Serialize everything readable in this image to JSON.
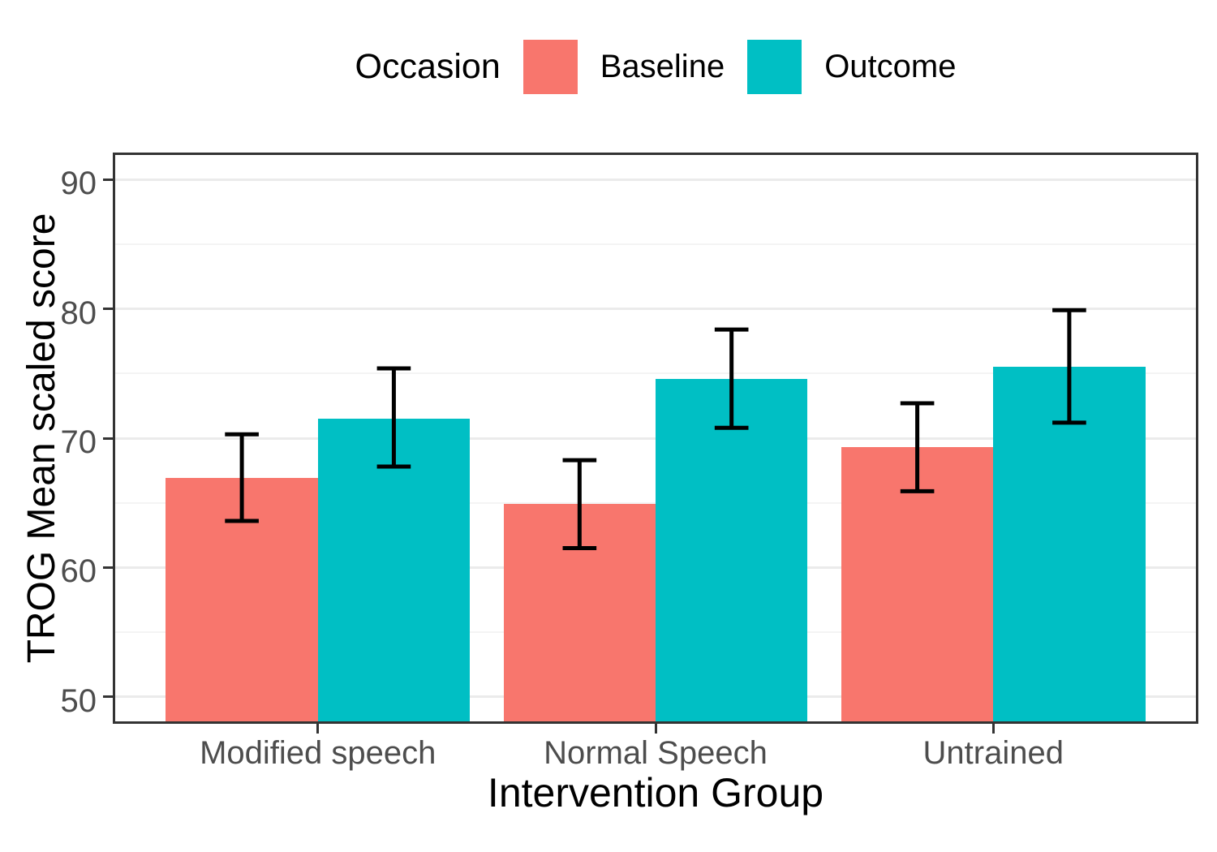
{
  "legend": {
    "title": "Occasion",
    "items": [
      {
        "label": "Baseline",
        "color": "#F8766D"
      },
      {
        "label": "Outcome",
        "color": "#00BFC4"
      }
    ]
  },
  "chart_data": {
    "type": "bar",
    "title": "",
    "categories": [
      "Modified speech",
      "Normal Speech",
      "Untrained"
    ],
    "series": [
      {
        "name": "Baseline",
        "color": "#F8766D",
        "values": [
          66.9,
          64.9,
          69.3
        ],
        "error_low": [
          63.6,
          61.5,
          65.9
        ],
        "error_high": [
          70.3,
          68.3,
          72.7
        ]
      },
      {
        "name": "Outcome",
        "color": "#00BFC4",
        "values": [
          71.5,
          74.6,
          75.5
        ],
        "error_low": [
          67.8,
          70.8,
          71.2
        ],
        "error_high": [
          75.4,
          78.4,
          79.9
        ]
      }
    ],
    "xlabel": "Intervention Group",
    "ylabel": "TROG Mean scaled score",
    "ylim": [
      48.1,
      91.9
    ],
    "y_major_ticks": [
      50,
      60,
      70,
      80,
      90
    ],
    "y_minor_ticks": [
      55,
      65,
      75,
      85
    ],
    "grid": true,
    "legend_position": "top",
    "bars_baseline_clipped_at_panel_bottom": true,
    "colors": {
      "major_grid": "#EBEBEB",
      "minor_grid": "#F4F4F4",
      "panel_border": "#333333",
      "tick_label": "#4D4D4D",
      "axis_title": "#000000",
      "error_bar": "#000000",
      "background": "#FFFFFF"
    }
  }
}
